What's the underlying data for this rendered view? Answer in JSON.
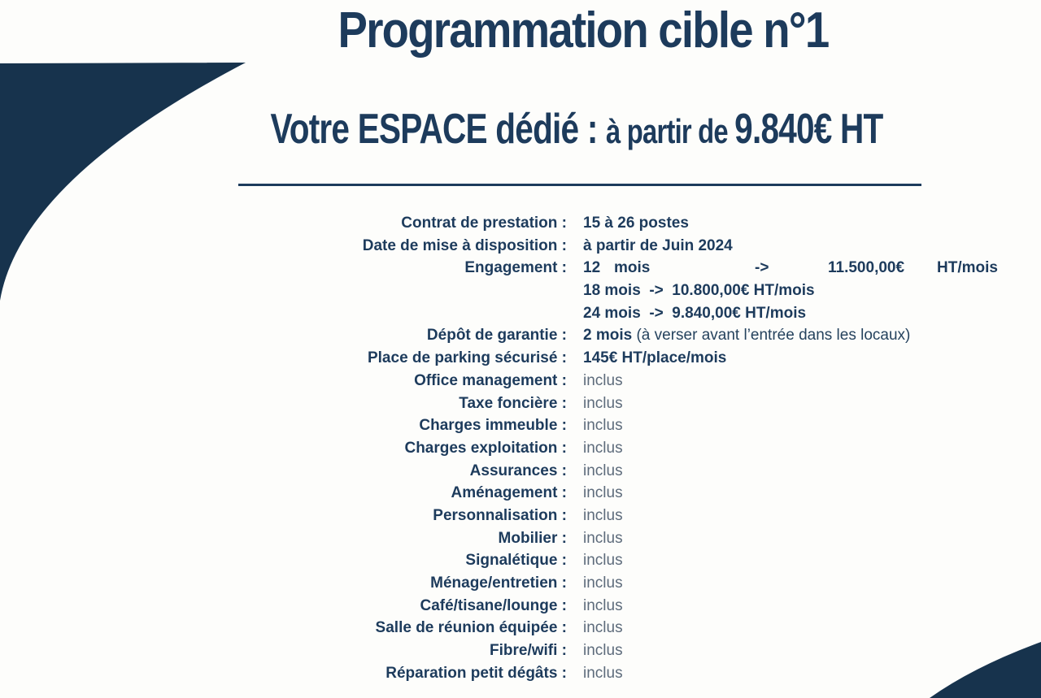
{
  "title": "Programmation cible n°1",
  "subtitle": {
    "lead": "Votre ESPACE dédié : ",
    "mid": "à partir de ",
    "price": "9.840€ HT"
  },
  "colors": {
    "navy": "#1d3b5c",
    "shape": "#17334d",
    "muted": "#5d6b7b"
  },
  "table": {
    "rows": [
      {
        "label": "Contrat de prestation :",
        "value": "15 à 26 postes",
        "style": "bold"
      },
      {
        "label": "Date de mise à disposition :",
        "value": "à partir de Juin 2024",
        "style": "bold"
      },
      {
        "label": "Engagement :",
        "style": "justified",
        "tokens": [
          "12",
          "mois",
          "->",
          "11.500,00€",
          "HT/mois"
        ]
      },
      {
        "label": "",
        "value": "18 mois  ->  10.800,00€ HT/mois",
        "style": "bold"
      },
      {
        "label": "",
        "value": "24 mois  ->  9.840,00€ HT/mois",
        "style": "bold"
      },
      {
        "label": "Dépôt de garantie :",
        "value_bold": "2 mois ",
        "value_note": "(à verser avant l’entrée dans les locaux)",
        "style": "mixed"
      },
      {
        "label": "Place de parking sécurisé :",
        "value": "145€ HT/place/mois",
        "style": "bold"
      },
      {
        "label": "Office management :",
        "value": "inclus",
        "style": "muted"
      },
      {
        "label": "Taxe foncière :",
        "value": "inclus",
        "style": "muted"
      },
      {
        "label": "Charges immeuble :",
        "value": "inclus",
        "style": "muted"
      },
      {
        "label": "Charges exploitation :",
        "value": "inclus",
        "style": "muted"
      },
      {
        "label": "Assurances :",
        "value": "inclus",
        "style": "muted"
      },
      {
        "label": "Aménagement :",
        "value": "inclus",
        "style": "muted"
      },
      {
        "label": "Personnalisation :",
        "value": "inclus",
        "style": "muted"
      },
      {
        "label": "Mobilier :",
        "value": "inclus",
        "style": "muted"
      },
      {
        "label": "Signalétique :",
        "value": "inclus",
        "style": "muted"
      },
      {
        "label": "Ménage/entretien :",
        "value": "inclus",
        "style": "muted"
      },
      {
        "label": "Café/tisane/lounge :",
        "value": "inclus",
        "style": "muted"
      },
      {
        "label": "Salle de réunion équipée :",
        "value": "inclus",
        "style": "muted"
      },
      {
        "label": "Fibre/wifi :",
        "value": "inclus",
        "style": "muted"
      },
      {
        "label": "Réparation petit dégâts :",
        "value": "inclus",
        "style": "muted"
      }
    ]
  }
}
